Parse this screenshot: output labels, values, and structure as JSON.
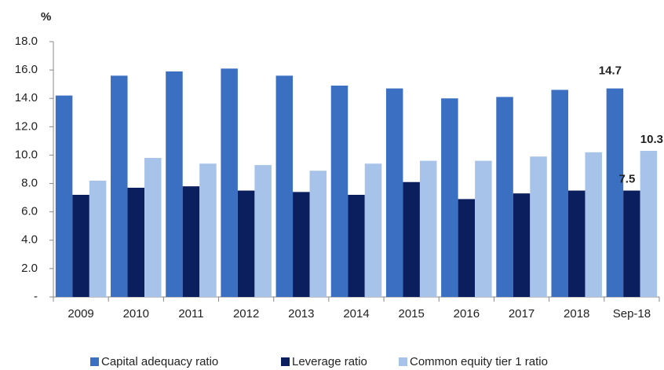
{
  "chart_data": {
    "type": "bar",
    "unit_label": "%",
    "categories": [
      "2009",
      "2010",
      "2011",
      "2012",
      "2013",
      "2014",
      "2015",
      "2016",
      "2017",
      "2018",
      "Sep-18"
    ],
    "series": [
      {
        "name": "Capital adequacy ratio",
        "color": "#3b6fc1",
        "values": [
          14.2,
          15.6,
          15.9,
          16.1,
          15.6,
          14.9,
          14.7,
          14.0,
          14.1,
          14.6,
          14.7
        ],
        "value_labels": [
          null,
          null,
          null,
          null,
          null,
          null,
          null,
          null,
          null,
          null,
          "14.7"
        ]
      },
      {
        "name": "Leverage ratio",
        "color": "#0b1f5e",
        "values": [
          7.2,
          7.7,
          7.8,
          7.5,
          7.4,
          7.2,
          8.1,
          6.9,
          7.3,
          7.5,
          7.5
        ],
        "value_labels": [
          null,
          null,
          null,
          null,
          null,
          null,
          null,
          null,
          null,
          null,
          "7.5"
        ]
      },
      {
        "name": "Common equity tier 1 ratio",
        "color": "#a8c3ea",
        "values": [
          8.2,
          9.8,
          9.4,
          9.3,
          8.9,
          9.4,
          9.6,
          9.6,
          9.9,
          10.2,
          10.3
        ],
        "value_labels": [
          null,
          null,
          null,
          null,
          null,
          null,
          null,
          null,
          null,
          null,
          "10.3"
        ]
      }
    ],
    "ylim": [
      0,
      18
    ],
    "yticks": [
      {
        "value": 0,
        "label": "-"
      },
      {
        "value": 2,
        "label": "2.0"
      },
      {
        "value": 4,
        "label": "4.0"
      },
      {
        "value": 6,
        "label": "6.0"
      },
      {
        "value": 8,
        "label": "8.0"
      },
      {
        "value": 10,
        "label": "10.0"
      },
      {
        "value": 12,
        "label": "12.0"
      },
      {
        "value": 14,
        "label": "14.0"
      },
      {
        "value": 16,
        "label": "16.0"
      },
      {
        "value": 18,
        "label": "18.0"
      }
    ],
    "grid": false,
    "legend": "bottom"
  }
}
